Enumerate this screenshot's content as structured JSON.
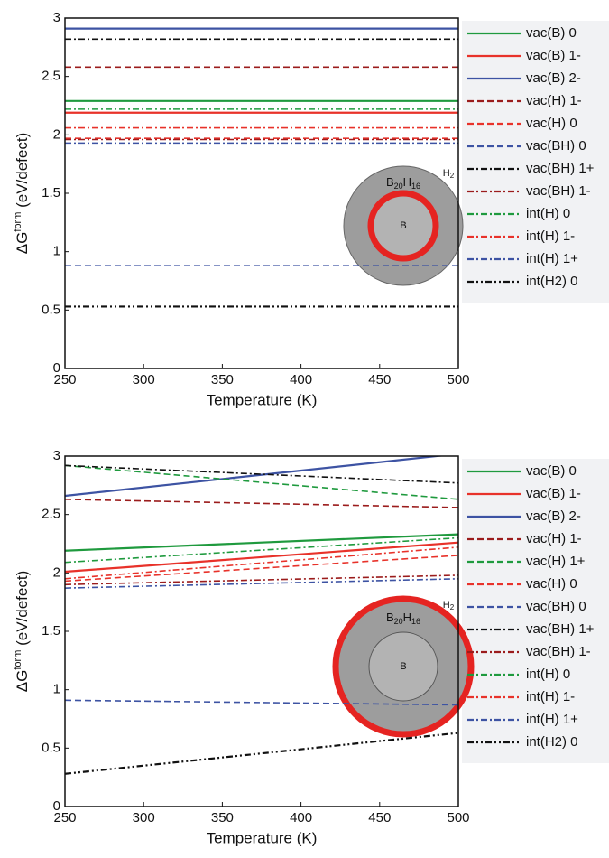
{
  "chart_data": [
    {
      "type": "line",
      "x_label": "Temperature (K)",
      "y_label": [
        "ΔG",
        "form",
        " (eV/defect)"
      ],
      "xlim": [
        250,
        500
      ],
      "ylim": [
        0,
        3
      ],
      "xticks": [
        250,
        300,
        350,
        400,
        450,
        500
      ],
      "yticks": [
        0,
        0.5,
        1,
        1.5,
        2,
        2.5,
        3
      ],
      "x": [
        250,
        500
      ],
      "inset": {
        "shell": [
          "B",
          "20",
          "H",
          "16"
        ],
        "core": "B",
        "gas": [
          "H",
          "2"
        ],
        "ring": "inner"
      },
      "series": [
        {
          "name": "vac(B) 0",
          "color": "#1f9a3e",
          "dash": "solid",
          "values": [
            2.29,
            2.29
          ]
        },
        {
          "name": "vac(B) 1-",
          "color": "#e8322a",
          "dash": "solid",
          "values": [
            2.19,
            2.19
          ]
        },
        {
          "name": "vac(B) 2-",
          "color": "#3d53a3",
          "dash": "solid",
          "values": [
            2.91,
            2.91
          ]
        },
        {
          "name": "vac(H) 1-",
          "color": "#9b1c1c",
          "dash": "dashed",
          "values": [
            2.58,
            2.58
          ]
        },
        {
          "name": "vac(H) 0",
          "color": "#e8322a",
          "dash": "dashed",
          "values": [
            1.97,
            1.97
          ]
        },
        {
          "name": "vac(BH) 0",
          "color": "#3d53a3",
          "dash": "dashed",
          "values": [
            0.88,
            0.88
          ]
        },
        {
          "name": "vac(BH) 1+",
          "color": "#111111",
          "dash": "dashdot",
          "values": [
            2.82,
            2.82
          ]
        },
        {
          "name": "vac(BH) 1-",
          "color": "#9b1c1c",
          "dash": "dashdot",
          "values": [
            1.96,
            1.96
          ]
        },
        {
          "name": "int(H) 0",
          "color": "#1f9a3e",
          "dash": "dashdot",
          "values": [
            2.22,
            2.22
          ]
        },
        {
          "name": "int(H) 1-",
          "color": "#e8322a",
          "dash": "dashdot",
          "values": [
            2.06,
            2.06
          ]
        },
        {
          "name": "int(H) 1+",
          "color": "#3d53a3",
          "dash": "dashdot",
          "values": [
            1.93,
            1.93
          ]
        },
        {
          "name": "int(H2) 0",
          "color": "#111111",
          "dash": "dashdotdot",
          "values": [
            0.53,
            0.53
          ]
        }
      ]
    },
    {
      "type": "line",
      "x_label": "Temperature (K)",
      "y_label": [
        "ΔG",
        "form",
        " (eV/defect)"
      ],
      "xlim": [
        250,
        500
      ],
      "ylim": [
        0,
        3
      ],
      "xticks": [
        250,
        300,
        350,
        400,
        450,
        500
      ],
      "yticks": [
        0,
        0.5,
        1,
        1.5,
        2,
        2.5,
        3
      ],
      "x": [
        250,
        500
      ],
      "inset": {
        "shell": [
          "B",
          "20",
          "H",
          "16"
        ],
        "core": "B",
        "gas": [
          "H",
          "2"
        ],
        "ring": "outer"
      },
      "series": [
        {
          "name": "vac(B) 0",
          "color": "#1f9a3e",
          "dash": "solid",
          "values": [
            2.19,
            2.33
          ]
        },
        {
          "name": "vac(B) 1-",
          "color": "#e8322a",
          "dash": "solid",
          "values": [
            2.01,
            2.26
          ]
        },
        {
          "name": "vac(B) 2-",
          "color": "#3d53a3",
          "dash": "solid",
          "values": [
            2.66,
            3.02
          ]
        },
        {
          "name": "vac(H) 1-",
          "color": "#9b1c1c",
          "dash": "dashed",
          "values": [
            2.63,
            2.56
          ]
        },
        {
          "name": "vac(H) 1+",
          "color": "#1f9a3e",
          "dash": "dashed",
          "values": [
            2.92,
            2.63
          ]
        },
        {
          "name": "vac(H) 0",
          "color": "#e8322a",
          "dash": "dashed",
          "values": [
            1.93,
            2.15
          ]
        },
        {
          "name": "vac(BH) 0",
          "color": "#3d53a3",
          "dash": "dashed",
          "values": [
            0.91,
            0.87
          ]
        },
        {
          "name": "vac(BH) 1+",
          "color": "#111111",
          "dash": "dashdot",
          "values": [
            2.92,
            2.77
          ]
        },
        {
          "name": "vac(BH) 1-",
          "color": "#9b1c1c",
          "dash": "dashdot",
          "values": [
            1.9,
            1.98
          ]
        },
        {
          "name": "int(H) 0",
          "color": "#1f9a3e",
          "dash": "dashdot",
          "values": [
            2.09,
            2.3
          ]
        },
        {
          "name": "int(H) 1-",
          "color": "#e8322a",
          "dash": "dashdot",
          "values": [
            1.95,
            2.22
          ]
        },
        {
          "name": "int(H) 1+",
          "color": "#3d53a3",
          "dash": "dashdot",
          "values": [
            1.87,
            1.95
          ]
        },
        {
          "name": "int(H2) 0",
          "color": "#111111",
          "dash": "dashdotdot",
          "values": [
            0.28,
            0.63
          ]
        }
      ]
    }
  ]
}
